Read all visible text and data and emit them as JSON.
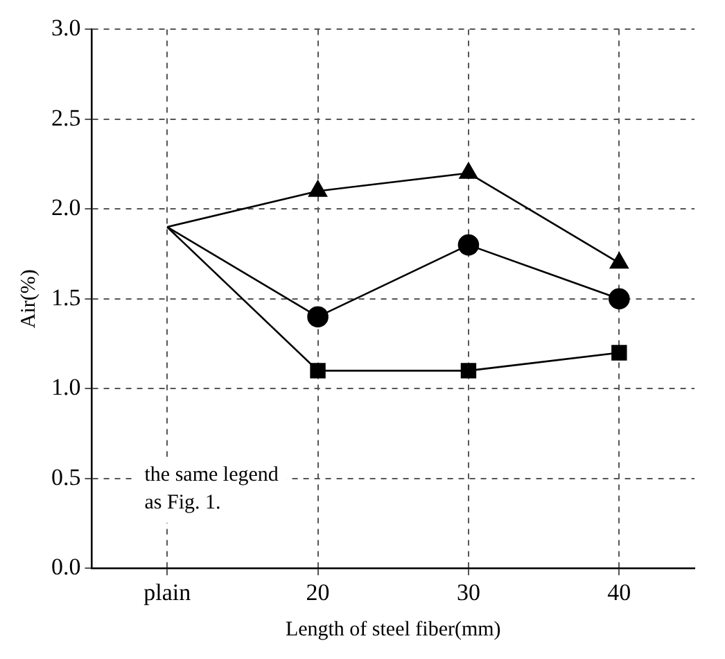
{
  "chart_data": {
    "type": "line",
    "xlabel": "Length of steel fiber(mm)",
    "ylabel": "Air(%)",
    "categories": [
      "plain",
      "20",
      "30",
      "40"
    ],
    "series": [
      {
        "color": "#000000",
        "marker": "triangle",
        "values": [
          1.9,
          2.1,
          2.2,
          1.7
        ]
      },
      {
        "color": "#000000",
        "marker": "circle",
        "values": [
          1.9,
          1.4,
          1.8,
          1.5
        ]
      },
      {
        "color": "#000000",
        "marker": "square",
        "values": [
          1.9,
          1.1,
          1.1,
          1.2
        ]
      }
    ],
    "ylim": [
      0,
      3
    ],
    "yticks": [
      {
        "value": 0,
        "label": "0.0"
      },
      {
        "value": 0.5,
        "label": "0.5"
      },
      {
        "value": 1,
        "label": "1.0"
      },
      {
        "value": 1.5,
        "label": "1.5"
      },
      {
        "value": 2,
        "label": "2.0"
      },
      {
        "value": 2.5,
        "label": "2.5"
      },
      {
        "value": 3,
        "label": "3.0"
      }
    ],
    "grid": true,
    "line_style": "solid",
    "annotations": [
      "the same legend\nas Fig. 1."
    ]
  }
}
